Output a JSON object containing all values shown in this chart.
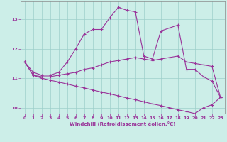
{
  "xlabel": "Windchill (Refroidissement éolien,°C)",
  "background_color": "#cceee8",
  "line_color": "#993399",
  "x_hours": [
    0,
    1,
    2,
    3,
    4,
    5,
    6,
    7,
    8,
    9,
    10,
    11,
    12,
    13,
    14,
    15,
    16,
    17,
    18,
    19,
    20,
    21,
    22,
    23
  ],
  "curve_main": [
    11.55,
    11.2,
    11.1,
    11.1,
    11.2,
    11.55,
    12.0,
    12.5,
    12.65,
    12.65,
    13.05,
    13.4,
    13.3,
    13.25,
    11.75,
    11.65,
    12.6,
    12.7,
    12.8,
    11.3,
    11.3,
    11.05,
    10.9,
    10.35
  ],
  "curve_mid": [
    11.55,
    11.1,
    11.05,
    11.05,
    11.1,
    11.15,
    11.2,
    11.3,
    11.35,
    11.45,
    11.55,
    11.6,
    11.65,
    11.7,
    11.65,
    11.6,
    11.65,
    11.7,
    11.75,
    11.55,
    11.5,
    11.45,
    11.4,
    10.35
  ],
  "curve_low": [
    11.55,
    11.1,
    11.0,
    10.93,
    10.87,
    10.8,
    10.73,
    10.67,
    10.6,
    10.53,
    10.47,
    10.4,
    10.33,
    10.27,
    10.2,
    10.13,
    10.07,
    10.0,
    9.93,
    9.87,
    9.8,
    10.0,
    10.1,
    10.35
  ],
  "ylim": [
    9.8,
    13.6
  ],
  "xlim": [
    -0.5,
    23.5
  ],
  "yticks": [
    10,
    11,
    12,
    13
  ],
  "xticks": [
    0,
    1,
    2,
    3,
    4,
    5,
    6,
    7,
    8,
    9,
    10,
    11,
    12,
    13,
    14,
    15,
    16,
    17,
    18,
    19,
    20,
    21,
    22,
    23
  ],
  "grid_color": "#9ecfca",
  "marker": "+"
}
